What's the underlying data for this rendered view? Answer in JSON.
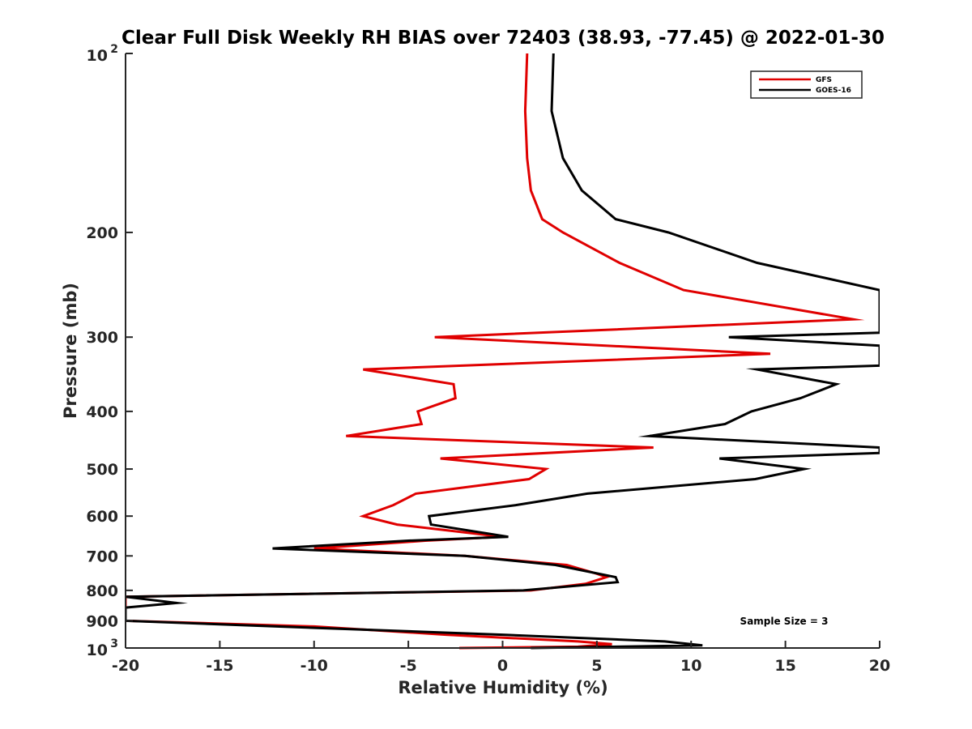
{
  "chart_data": {
    "type": "line",
    "title": "Clear Full Disk Weekly RH BIAS over 72403 (38.93, -77.45) @ 2022-01-30",
    "xlabel": "Relative Humidity (%)",
    "ylabel": "Pressure (mb)",
    "xlim": [
      -20,
      20
    ],
    "ylim": [
      100,
      1000
    ],
    "y_scale": "log",
    "y_reversed": true,
    "x_ticks": [
      "-20",
      "-15",
      "-10",
      "-5",
      "0",
      "5",
      "10",
      "15",
      "20"
    ],
    "y_ticks": [
      {
        "value": 100,
        "base": "10",
        "exp": "2"
      },
      {
        "value": 200,
        "label": "200"
      },
      {
        "value": 300,
        "label": "300"
      },
      {
        "value": 400,
        "label": "400"
      },
      {
        "value": 500,
        "label": "500"
      },
      {
        "value": 600,
        "label": "600"
      },
      {
        "value": 700,
        "label": "700"
      },
      {
        "value": 800,
        "label": "800"
      },
      {
        "value": 900,
        "label": "900"
      },
      {
        "value": 1000,
        "base": "10",
        "exp": "3"
      }
    ],
    "grid": false,
    "legend_position": "top-right",
    "annotation": "Sample Size = 3",
    "series": [
      {
        "name": "GFS",
        "color": "#e00000",
        "points": [
          [
            1.3,
            100
          ],
          [
            1.2,
            125
          ],
          [
            1.3,
            150
          ],
          [
            1.5,
            170
          ],
          [
            2.1,
            190
          ],
          [
            3.2,
            200
          ],
          [
            6.2,
            225
          ],
          [
            9.6,
            250
          ],
          [
            18.6,
            280
          ],
          [
            -3.6,
            300
          ],
          [
            14.2,
            320
          ],
          [
            -7.4,
            340
          ],
          [
            -2.6,
            360
          ],
          [
            -2.5,
            380
          ],
          [
            -4.5,
            400
          ],
          [
            -4.3,
            420
          ],
          [
            -8.3,
            440
          ],
          [
            8.0,
            460
          ],
          [
            -3.3,
            480
          ],
          [
            2.3,
            500
          ],
          [
            1.4,
            520
          ],
          [
            -4.6,
            550
          ],
          [
            -5.8,
            575
          ],
          [
            -7.4,
            600
          ],
          [
            -5.6,
            620
          ],
          [
            0.0,
            650
          ],
          [
            -4.1,
            660
          ],
          [
            -10.0,
            680
          ],
          [
            -2.0,
            700
          ],
          [
            3.4,
            725
          ],
          [
            5.0,
            750
          ],
          [
            5.5,
            760
          ],
          [
            4.4,
            780
          ],
          [
            1.5,
            800
          ],
          [
            -20.0,
            820
          ],
          [
            -20.0,
            840
          ],
          [
            -20.0,
            900
          ],
          [
            -10.0,
            920
          ],
          [
            -3.0,
            950
          ],
          [
            4.0,
            975
          ],
          [
            5.8,
            985
          ],
          [
            4.0,
            995
          ],
          [
            -2.3,
            1000
          ]
        ]
      },
      {
        "name": "GOES-16",
        "color": "#000000",
        "points": [
          [
            2.7,
            100
          ],
          [
            2.6,
            125
          ],
          [
            3.2,
            150
          ],
          [
            4.2,
            170
          ],
          [
            6.0,
            190
          ],
          [
            8.8,
            200
          ],
          [
            13.5,
            225
          ],
          [
            20.0,
            250
          ],
          [
            20.0,
            280
          ],
          [
            20.0,
            295
          ],
          [
            12.0,
            300
          ],
          [
            20.0,
            310
          ],
          [
            20.0,
            325
          ],
          [
            20.0,
            335
          ],
          [
            13.5,
            340
          ],
          [
            17.7,
            360
          ],
          [
            15.8,
            380
          ],
          [
            13.2,
            400
          ],
          [
            11.8,
            420
          ],
          [
            7.8,
            440
          ],
          [
            20.0,
            460
          ],
          [
            20.0,
            470
          ],
          [
            11.5,
            480
          ],
          [
            16.0,
            500
          ],
          [
            13.4,
            520
          ],
          [
            4.5,
            550
          ],
          [
            0.7,
            575
          ],
          [
            -3.9,
            600
          ],
          [
            -3.8,
            620
          ],
          [
            0.3,
            650
          ],
          [
            -5.0,
            660
          ],
          [
            -12.2,
            680
          ],
          [
            -2.0,
            700
          ],
          [
            2.8,
            725
          ],
          [
            6.0,
            760
          ],
          [
            6.1,
            775
          ],
          [
            1.1,
            800
          ],
          [
            -20.0,
            820
          ],
          [
            -17.3,
            840
          ],
          [
            -20.0,
            855
          ],
          [
            -20.0,
            900
          ],
          [
            -10.0,
            925
          ],
          [
            0.0,
            950
          ],
          [
            8.6,
            975
          ],
          [
            10.6,
            990
          ],
          [
            1.5,
            1000
          ]
        ]
      }
    ]
  }
}
